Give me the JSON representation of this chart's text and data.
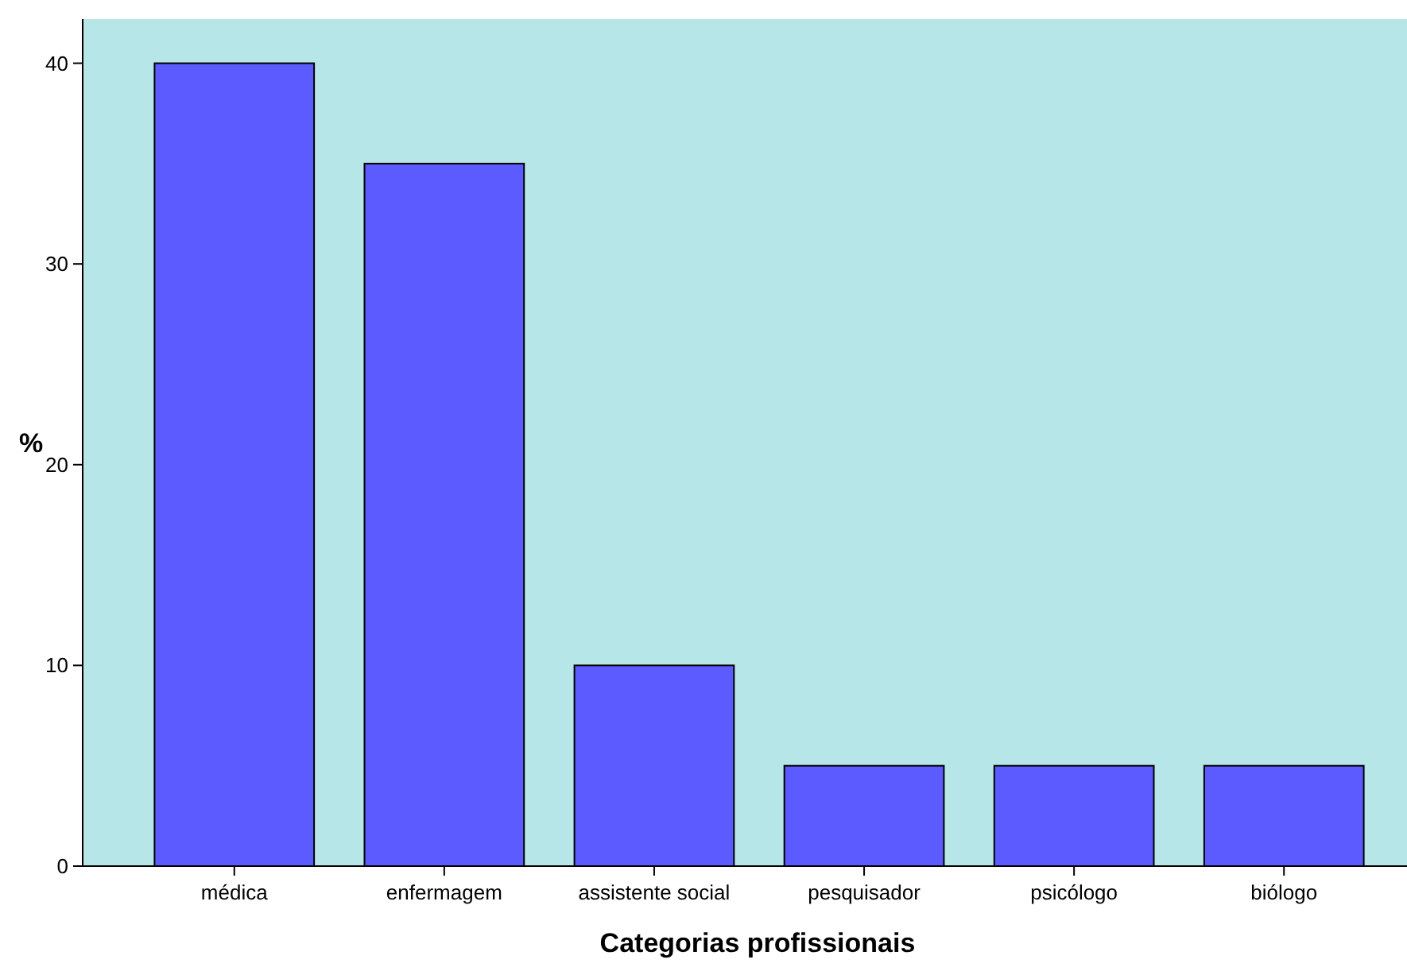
{
  "chart_data": {
    "type": "bar",
    "xlabel": "Categorias profissionais",
    "ylabel": "%",
    "categories": [
      "médica",
      "enfermagem",
      "assistente social",
      "pesquisador",
      "psicólogo",
      "biólogo"
    ],
    "values": [
      40,
      35,
      10,
      5,
      5,
      5
    ],
    "color": "#5b5bff",
    "ylim": [
      0,
      42.2
    ],
    "yticks": [
      0,
      10,
      20,
      30,
      40
    ],
    "grid": false
  }
}
